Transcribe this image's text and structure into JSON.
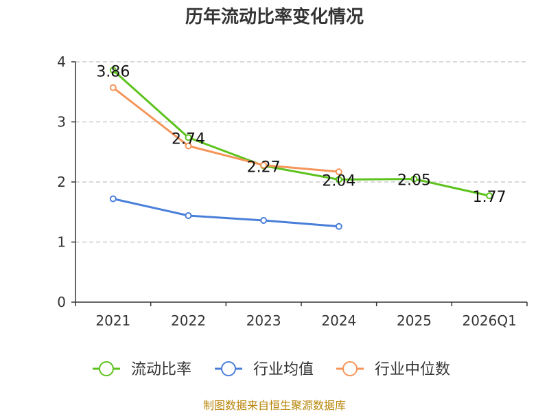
{
  "chart_data": {
    "type": "line",
    "title": "历年流动比率变化情况",
    "categories": [
      "2021",
      "2022",
      "2023",
      "2024",
      "2025",
      "2026Q1"
    ],
    "ylim": [
      0,
      4
    ],
    "yticks": [
      0,
      1,
      2,
      3,
      4
    ],
    "grid": true,
    "legend_position": "bottom",
    "series": [
      {
        "name": "流动比率",
        "color": "#5cc21c",
        "values": [
          3.86,
          2.74,
          2.27,
          2.04,
          2.05,
          1.77
        ],
        "labels": [
          "3.86",
          "2.74",
          "2.27",
          "2.04",
          "2.05",
          "1.77"
        ]
      },
      {
        "name": "行业均值",
        "color": "#4a7fd9",
        "values": [
          1.72,
          1.44,
          1.36,
          1.26,
          null,
          null
        ]
      },
      {
        "name": "行业中位数",
        "color": "#f5955a",
        "values": [
          3.57,
          2.6,
          2.28,
          2.17,
          null,
          null
        ]
      }
    ],
    "source": "制图数据来自恒生聚源数据库"
  }
}
